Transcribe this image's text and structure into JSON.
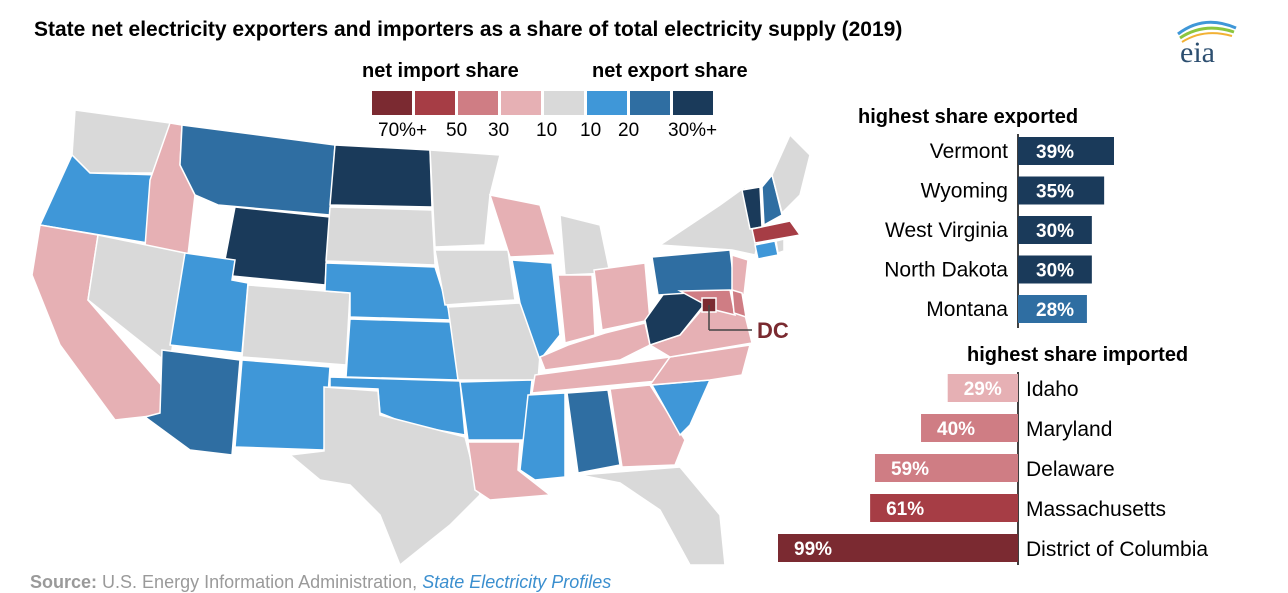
{
  "title": "State net electricity exporters and importers as a share of total electricity supply (2019)",
  "logo_text": "eia",
  "legend": {
    "import_label": "net import share",
    "export_label": "net export share",
    "import_color": "#b84b55",
    "export_color": "#3f97d8",
    "swatches": [
      "#7b2a31",
      "#a63d45",
      "#cf7d84",
      "#e6b0b4",
      "#d9d9d9",
      "#3f97d8",
      "#2f6ea2",
      "#1a3a5a"
    ],
    "ticks": [
      "70%+",
      "50",
      "30",
      "10",
      "10",
      "20",
      "30%+"
    ]
  },
  "dc_label": "DC",
  "source": {
    "label": "Source:",
    "text": "U.S. Energy Information Administration,",
    "link": "State Electricity Profiles"
  },
  "chart_data": [
    {
      "type": "bar",
      "title": "highest share exported",
      "categories": [
        "Vermont",
        "Wyoming",
        "West Virginia",
        "North Dakota",
        "Montana"
      ],
      "values": [
        39,
        35,
        30,
        30,
        28
      ],
      "labels": [
        "39%",
        "35%",
        "30%",
        "30%",
        "28%"
      ],
      "colors": [
        "#1a3a5a",
        "#1a3a5a",
        "#1a3a5a",
        "#1a3a5a",
        "#2f6ea2"
      ]
    },
    {
      "type": "bar",
      "title": "highest share imported",
      "categories": [
        "Idaho",
        "Maryland",
        "Delaware",
        "Massachusetts",
        "District of Columbia"
      ],
      "values": [
        29,
        40,
        59,
        61,
        99
      ],
      "labels": [
        "29%",
        "40%",
        "59%",
        "61%",
        "99%"
      ],
      "colors": [
        "#e6b0b4",
        "#cf7d84",
        "#cf7d84",
        "#a63d45",
        "#7b2a31"
      ]
    }
  ]
}
